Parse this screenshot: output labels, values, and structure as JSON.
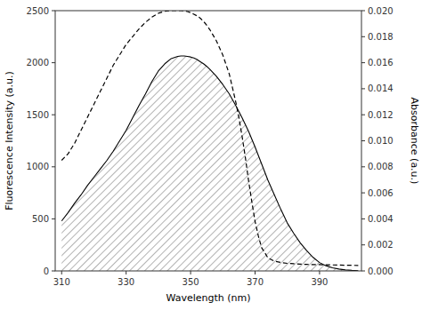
{
  "chart_data": {
    "type": "line",
    "xlabel": "Wavelength (nm)",
    "ylabel": "Fluorescence Intensity (a.u.)",
    "y2label": "Absorbance (a.u.)",
    "xlim": [
      308,
      403
    ],
    "ylim": [
      0,
      2500
    ],
    "y2lim": [
      0,
      0.02
    ],
    "xticks": [
      310,
      330,
      350,
      370,
      390
    ],
    "yticks": [
      0,
      500,
      1000,
      1500,
      2000,
      2500
    ],
    "y2ticks": [
      {
        "value": 0,
        "label": "0.000"
      },
      0.002,
      0.004,
      0.006,
      0.008,
      {
        "value": 0.01,
        "label": "0.010"
      },
      0.012,
      0.014,
      0.016,
      0.018,
      {
        "value": 0.02,
        "label": "0.020"
      }
    ],
    "grid": false,
    "series": [
      {
        "type": "area",
        "color": "#000000",
        "line_style": "solid",
        "x": [
          310,
          312,
          314,
          316,
          318,
          320,
          322,
          324,
          326,
          328,
          330,
          332,
          334,
          336,
          338,
          340,
          342,
          344,
          346,
          347,
          348,
          349,
          350,
          351,
          352,
          353,
          354,
          355,
          356,
          358,
          360,
          362,
          364,
          366,
          368,
          370,
          372,
          374,
          376,
          378,
          380,
          382,
          384,
          386,
          388,
          390,
          392,
          394,
          396,
          398,
          400,
          402
        ],
        "values": [
          480,
          560,
          650,
          730,
          820,
          900,
          980,
          1060,
          1150,
          1250,
          1350,
          1470,
          1590,
          1700,
          1820,
          1920,
          1990,
          2040,
          2060,
          2065,
          2065,
          2060,
          2055,
          2045,
          2030,
          2010,
          1990,
          1965,
          1935,
          1870,
          1790,
          1700,
          1590,
          1470,
          1340,
          1190,
          1030,
          870,
          730,
          590,
          460,
          360,
          270,
          195,
          130,
          80,
          50,
          30,
          18,
          10,
          5,
          2
        ]
      },
      {
        "type": "line",
        "color": "#000000",
        "line_style": "dashed",
        "axis": "y2",
        "x": [
          310,
          312,
          314,
          316,
          318,
          320,
          322,
          324,
          326,
          328,
          330,
          332,
          334,
          336,
          338,
          340,
          342,
          344,
          346,
          347,
          348,
          349,
          350,
          351,
          352,
          353,
          354,
          355,
          356,
          358,
          360,
          362,
          364,
          365,
          366,
          367,
          368,
          369,
          370,
          371,
          372,
          374,
          376,
          378,
          380,
          382,
          384,
          386,
          388,
          390,
          392,
          394,
          396,
          398,
          400,
          402
        ],
        "values": [
          0.0085,
          0.009,
          0.0098,
          0.0108,
          0.0118,
          0.0128,
          0.0138,
          0.0148,
          0.0158,
          0.0166,
          0.0174,
          0.018,
          0.0186,
          0.0191,
          0.0195,
          0.0198,
          0.01995,
          0.02,
          0.02,
          0.02,
          0.01998,
          0.01993,
          0.01985,
          0.01973,
          0.0196,
          0.01942,
          0.01918,
          0.01888,
          0.01853,
          0.01768,
          0.01658,
          0.01513,
          0.013,
          0.01176,
          0.0103,
          0.0087,
          0.0069,
          0.0053,
          0.0038,
          0.0027,
          0.0018,
          0.001,
          0.00075,
          0.00065,
          0.00058,
          0.00055,
          0.00052,
          0.0005,
          0.00049,
          0.00048,
          0.00047,
          0.00046,
          0.00045,
          0.00044,
          0.00043,
          0.00042
        ]
      }
    ]
  }
}
